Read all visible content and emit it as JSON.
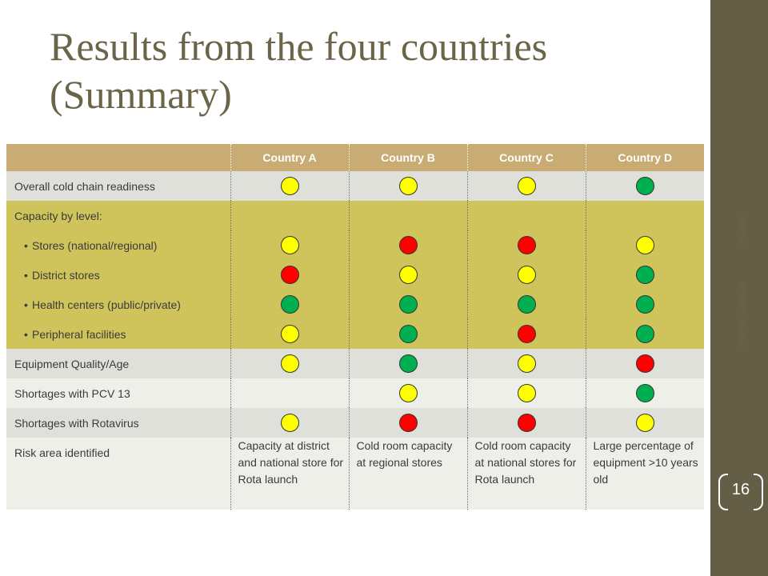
{
  "slide": {
    "title": "Results from the four countries (Summary)",
    "date": "1/5/2012",
    "footer": "Change Seminar",
    "page_number": "16",
    "accent_color": "#655e47"
  },
  "table": {
    "columns": [
      "Country A",
      "Country B",
      "Country C",
      "Country D"
    ],
    "rows": [
      {
        "label": "Overall cold chain readiness",
        "style": "grey",
        "indent": false,
        "ratings": [
          "yellow",
          "yellow",
          "yellow",
          "green"
        ]
      },
      {
        "label": "Capacity by level:",
        "style": "yel",
        "indent": false,
        "ratings": [
          null,
          null,
          null,
          null
        ]
      },
      {
        "label": "Stores (national/regional)",
        "style": "yel",
        "indent": true,
        "ratings": [
          "yellow",
          "red",
          "red",
          "yellow"
        ]
      },
      {
        "label": "District stores",
        "style": "yel",
        "indent": true,
        "ratings": [
          "red",
          "yellow",
          "yellow",
          "green"
        ]
      },
      {
        "label": "Health centers  (public/private)",
        "style": "yel",
        "indent": true,
        "ratings": [
          "green",
          "green",
          "green",
          "green"
        ]
      },
      {
        "label": "Peripheral facilities",
        "style": "yel",
        "indent": true,
        "ratings": [
          "yellow",
          "green",
          "red",
          "green"
        ]
      },
      {
        "label": "Equipment Quality/Age",
        "style": "grey",
        "indent": false,
        "ratings": [
          "yellow",
          "green",
          "yellow",
          "red"
        ]
      },
      {
        "label": "Shortages with PCV 13",
        "style": "light",
        "indent": false,
        "ratings": [
          null,
          "yellow",
          "yellow",
          "green"
        ]
      },
      {
        "label": "Shortages with Rotavirus",
        "style": "grey",
        "indent": false,
        "ratings": [
          "yellow",
          "red",
          "red",
          "yellow"
        ]
      }
    ],
    "risk_row": {
      "label": "Risk area identified",
      "cells": [
        "Capacity at district and national store for Rota launch",
        "Cold room capacity at regional stores",
        "Cold room capacity at national stores for Rota launch",
        "Large percentage of equipment >10 years old"
      ]
    },
    "rating_colors": {
      "yellow": "#ffff00",
      "red": "#ff0000",
      "green": "#00b050"
    }
  }
}
